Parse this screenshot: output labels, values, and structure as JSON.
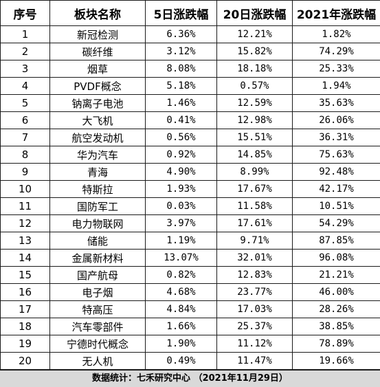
{
  "table": {
    "headers": [
      "序号",
      "板块名称",
      "5日涨跌幅",
      "20日涨跌幅",
      "2021年涨跌幅"
    ],
    "rows": [
      [
        "1",
        "新冠检测",
        "6.36%",
        "12.21%",
        "1.82%"
      ],
      [
        "2",
        "碳纤维",
        "3.12%",
        "15.82%",
        "74.29%"
      ],
      [
        "3",
        "烟草",
        "8.08%",
        "18.18%",
        "25.33%"
      ],
      [
        "4",
        "PVDF概念",
        "5.18%",
        "0.57%",
        "1.94%"
      ],
      [
        "5",
        "钠离子电池",
        "1.46%",
        "12.59%",
        "35.63%"
      ],
      [
        "6",
        "大飞机",
        "0.41%",
        "12.98%",
        "26.06%"
      ],
      [
        "7",
        "航空发动机",
        "0.56%",
        "15.51%",
        "36.31%"
      ],
      [
        "8",
        "华为汽车",
        "0.92%",
        "14.85%",
        "75.63%"
      ],
      [
        "9",
        "青海",
        "4.90%",
        "8.99%",
        "92.48%"
      ],
      [
        "10",
        "特斯拉",
        "1.93%",
        "17.67%",
        "42.17%"
      ],
      [
        "11",
        "国防军工",
        "0.03%",
        "11.58%",
        "10.51%"
      ],
      [
        "12",
        "电力物联网",
        "3.97%",
        "17.61%",
        "54.29%"
      ],
      [
        "13",
        "储能",
        "1.19%",
        "9.71%",
        "87.85%"
      ],
      [
        "14",
        "金属新材料",
        "13.07%",
        "32.01%",
        "96.08%"
      ],
      [
        "15",
        "国产航母",
        "0.82%",
        "12.83%",
        "21.21%"
      ],
      [
        "16",
        "电子烟",
        "4.68%",
        "23.77%",
        "46.00%"
      ],
      [
        "17",
        "特高压",
        "4.84%",
        "17.03%",
        "28.26%"
      ],
      [
        "18",
        "汽车零部件",
        "1.66%",
        "25.37%",
        "38.85%"
      ],
      [
        "19",
        "宁德时代概念",
        "1.90%",
        "11.12%",
        "78.89%"
      ],
      [
        "20",
        "无人机",
        "0.49%",
        "11.47%",
        "19.66%"
      ]
    ]
  },
  "footer": {
    "text": "数据统计：七禾研究中心 （2021年11月29日）"
  },
  "colors": {
    "border": "#1a1a1a",
    "footer_bg": "#d9d9d9",
    "text": "#000000"
  }
}
